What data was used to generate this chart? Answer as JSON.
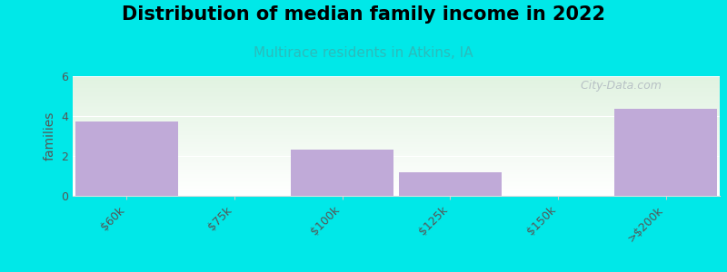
{
  "title": "Distribution of median family income in 2022",
  "subtitle": "Multirace residents in Atkins, IA",
  "categories": [
    "$60k",
    "$75k",
    "$100k",
    "$125k",
    "$150k",
    ">$200k"
  ],
  "values": [
    3.75,
    0,
    2.3,
    1.2,
    0,
    4.35
  ],
  "bar_color": "#c0aad8",
  "ylabel": "families",
  "ylim": [
    0,
    6
  ],
  "yticks": [
    0,
    2,
    4,
    6
  ],
  "background_color": "#00e8e8",
  "title_fontsize": 15,
  "subtitle_fontsize": 11,
  "subtitle_color": "#2abcbc",
  "watermark": " City-Data.com",
  "watermark_color": "#b0b8c0",
  "tick_label_rotation": 45,
  "bar_width": 0.95,
  "plot_bg_green": [
    0.88,
    0.95,
    0.88
  ],
  "plot_bg_white": [
    1.0,
    1.0,
    1.0
  ]
}
